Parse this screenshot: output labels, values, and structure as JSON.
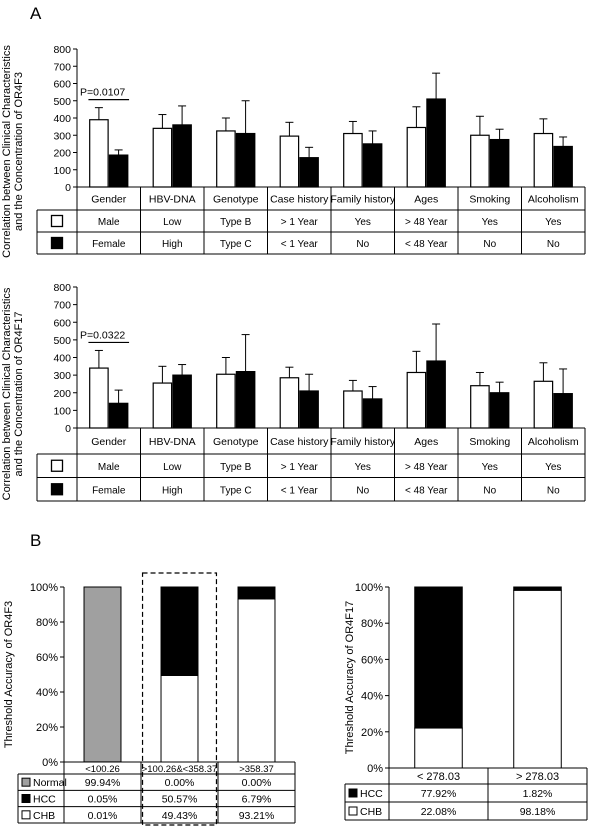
{
  "panel_labels": {
    "a": "A",
    "b": "B"
  },
  "chart_data": [
    {
      "id": "or4f3",
      "type": "bar",
      "ylabel": "Correlation between Clinical Characteristics and the Concentration of OR4F3",
      "ylim": [
        0,
        800
      ],
      "yticks": [
        "0",
        "100",
        "200",
        "300",
        "400",
        "500",
        "600",
        "700",
        "800"
      ],
      "categories": [
        "Gender",
        "HBV-DNA",
        "Genotype",
        "Case history",
        "Family history",
        "Ages",
        "Smoking",
        "Alcoholism"
      ],
      "series": [
        {
          "name": "first group",
          "color": "#ffffff",
          "values": [
            390,
            340,
            325,
            295,
            310,
            345,
            300,
            310
          ],
          "errors": [
            70,
            80,
            75,
            80,
            70,
            120,
            110,
            85
          ]
        },
        {
          "name": "second group",
          "color": "#000000",
          "values": [
            185,
            360,
            310,
            170,
            250,
            510,
            275,
            235
          ],
          "errors": [
            30,
            110,
            190,
            60,
            75,
            150,
            60,
            55
          ]
        }
      ],
      "annotation": "P=0.0107",
      "annotation_category": 0,
      "table_rows": [
        [
          "Male",
          "Low",
          "Type B",
          "> 1 Year",
          "Yes",
          "> 48 Year",
          "Yes",
          "Yes"
        ],
        [
          "Female",
          "High",
          "Type C",
          "< 1 Year",
          "No",
          "< 48 Year",
          "No",
          "No"
        ]
      ]
    },
    {
      "id": "or4f17",
      "type": "bar",
      "ylabel": "Correlation between Clinical Characteristics and the Concentration of OR4F17",
      "ylim": [
        0,
        800
      ],
      "yticks": [
        "0",
        "100",
        "200",
        "300",
        "400",
        "500",
        "600",
        "700",
        "800"
      ],
      "categories": [
        "Gender",
        "HBV-DNA",
        "Genotype",
        "Case history",
        "Family history",
        "Ages",
        "Smoking",
        "Alcoholism"
      ],
      "series": [
        {
          "name": "first group",
          "color": "#ffffff",
          "values": [
            340,
            255,
            305,
            285,
            210,
            315,
            240,
            265
          ],
          "errors": [
            100,
            95,
            95,
            60,
            60,
            120,
            75,
            105
          ]
        },
        {
          "name": "second group",
          "color": "#000000",
          "values": [
            140,
            300,
            320,
            210,
            165,
            380,
            200,
            195
          ],
          "errors": [
            75,
            60,
            210,
            95,
            70,
            210,
            60,
            140
          ]
        }
      ],
      "annotation": "P=0.0322",
      "annotation_category": 0,
      "table_rows": [
        [
          "Male",
          "Low",
          "Type B",
          "> 1 Year",
          "Yes",
          "> 48 Year",
          "Yes",
          "Yes"
        ],
        [
          "Female",
          "High",
          "Type C",
          "< 1 Year",
          "No",
          "< 48 Year",
          "No",
          "No"
        ]
      ]
    },
    {
      "id": "or4f3-threshold",
      "type": "bar",
      "stacked": true,
      "ylabel": "Threshold Accuracy of OR4F3",
      "ylim": [
        0,
        100
      ],
      "yticks": [
        "0%",
        "20%",
        "40%",
        "60%",
        "80%",
        "100%"
      ],
      "categories": [
        "<100.26",
        ">100.26&<358.37",
        ">358.37"
      ],
      "highlight_category": 1,
      "series": [
        {
          "name": "Normal",
          "color": "#a0a0a0",
          "values": [
            99.94,
            0.0,
            0.0
          ]
        },
        {
          "name": "HCC",
          "color": "#000000",
          "values": [
            0.05,
            50.57,
            6.79
          ]
        },
        {
          "name": "CHB",
          "color": "#ffffff",
          "values": [
            0.01,
            49.43,
            93.21
          ]
        }
      ],
      "stack_order": [
        "CHB",
        "HCC",
        "Normal"
      ],
      "table_rows": [
        [
          "Normal",
          "99.94%",
          "0.00%",
          "0.00%"
        ],
        [
          "HCC",
          "0.05%",
          "50.57%",
          "6.79%"
        ],
        [
          "CHB",
          "0.01%",
          "49.43%",
          "93.21%"
        ]
      ]
    },
    {
      "id": "or4f17-threshold",
      "type": "bar",
      "stacked": true,
      "ylabel": "Threshold Accuracy of OR4F17",
      "ylim": [
        0,
        100
      ],
      "yticks": [
        "0%",
        "20%",
        "40%",
        "60%",
        "80%",
        "100%"
      ],
      "categories": [
        "< 278.03",
        "> 278.03"
      ],
      "series": [
        {
          "name": "HCC",
          "color": "#000000",
          "values": [
            77.92,
            1.82
          ]
        },
        {
          "name": "CHB",
          "color": "#ffffff",
          "values": [
            22.08,
            98.18
          ]
        }
      ],
      "stack_order": [
        "CHB",
        "HCC"
      ],
      "table_rows": [
        [
          "HCC",
          "77.92%",
          "1.82%"
        ],
        [
          "CHB",
          "22.08%",
          "98.18%"
        ]
      ]
    }
  ]
}
